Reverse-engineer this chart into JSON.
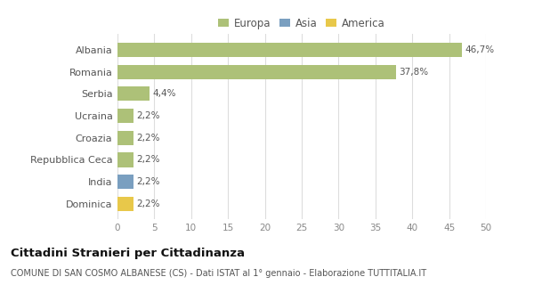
{
  "categories": [
    "Albania",
    "Romania",
    "Serbia",
    "Ucraina",
    "Croazia",
    "Repubblica Ceca",
    "India",
    "Dominica"
  ],
  "values": [
    46.7,
    37.8,
    4.4,
    2.2,
    2.2,
    2.2,
    2.2,
    2.2
  ],
  "labels": [
    "46,7%",
    "37,8%",
    "4,4%",
    "2,2%",
    "2,2%",
    "2,2%",
    "2,2%",
    "2,2%"
  ],
  "colors": [
    "#adc178",
    "#adc178",
    "#adc178",
    "#adc178",
    "#adc178",
    "#adc178",
    "#7a9fc0",
    "#e8c84a"
  ],
  "legend_labels": [
    "Europa",
    "Asia",
    "America"
  ],
  "legend_colors": [
    "#adc178",
    "#7a9fc0",
    "#e8c84a"
  ],
  "xlim": [
    0,
    50
  ],
  "xticks": [
    0,
    5,
    10,
    15,
    20,
    25,
    30,
    35,
    40,
    45,
    50
  ],
  "title": "Cittadini Stranieri per Cittadinanza",
  "subtitle": "COMUNE DI SAN COSMO ALBANESE (CS) - Dati ISTAT al 1° gennaio - Elaborazione TUTTITALIA.IT",
  "bg_color": "#ffffff",
  "grid_color": "#dddddd",
  "bar_height": 0.65
}
